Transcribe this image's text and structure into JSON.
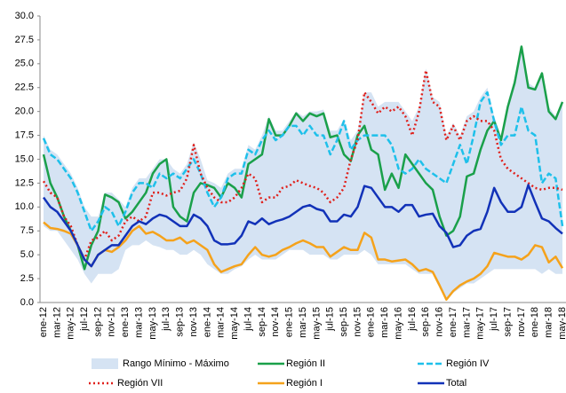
{
  "chart_data": {
    "type": "line",
    "categories": [
      "ene-12",
      null,
      "mar-12",
      null,
      "may-12",
      null,
      "jul-12",
      null,
      "sep-12",
      null,
      "nov-12",
      null,
      "ene-13",
      null,
      "mar-13",
      null,
      "may-13",
      null,
      "jul-13",
      null,
      "sep-13",
      null,
      "nov-13",
      null,
      "ene-14",
      null,
      "mar-14",
      null,
      "may-14",
      null,
      "jul-14",
      null,
      "sep-14",
      null,
      "nov-14",
      null,
      "ene-15",
      null,
      "mar-15",
      null,
      "may-15",
      null,
      "jul-15",
      null,
      "sep-15",
      null,
      "nov-15",
      null,
      "ene-16",
      null,
      "mar-16",
      null,
      "may-16",
      null,
      "jul-16",
      null,
      "sep-16",
      null,
      "nov-16",
      null,
      "ene-17",
      null,
      "mar-17",
      null,
      "may-17",
      null,
      "jul-17",
      null,
      "sep-17",
      null,
      "nov-17",
      null,
      "ene-18",
      null,
      "mar-18",
      null,
      "may-18"
    ],
    "ylim": [
      0,
      30
    ],
    "yticks": [
      {
        "value": 0,
        "label": "0.0"
      },
      2.5,
      {
        "value": 5,
        "label": "5.0"
      },
      7.5,
      {
        "value": 10,
        "label": "10.0"
      },
      12.5,
      {
        "value": 15,
        "label": "15.0"
      },
      17.5,
      {
        "value": 20,
        "label": "20.0"
      },
      22.5,
      {
        "value": 25,
        "label": "25.0"
      },
      27.5,
      {
        "value": 30,
        "label": "30.0"
      }
    ],
    "band": {
      "name": "Rango Mínimo - Máximo",
      "color": "#d5e3f3",
      "high": [
        17.5,
        16,
        15.5,
        14.5,
        13.5,
        12,
        10,
        9,
        9,
        11.5,
        11.5,
        10.8,
        10,
        12,
        13,
        13,
        14,
        15,
        15,
        14,
        13.5,
        14.5,
        16.8,
        15,
        12.8,
        12.5,
        12,
        13.5,
        14,
        14,
        16.5,
        16,
        17.5,
        19.5,
        18,
        18,
        19,
        20,
        19.5,
        20,
        20,
        20.2,
        18,
        18,
        19.2,
        17,
        18,
        22,
        22,
        20.5,
        21,
        21,
        21,
        20,
        19,
        20.5,
        24.5,
        21.5,
        21,
        17.5,
        18.8,
        17.5,
        19.5,
        20,
        21.5,
        22.5,
        19.5,
        17.5,
        21,
        23.5,
        27,
        23,
        22.5,
        24.2,
        20.5,
        19.5,
        21.2
      ],
      "low": [
        8,
        7.5,
        7.5,
        6.5,
        5.5,
        4.5,
        3,
        2,
        3,
        3,
        3,
        3.5,
        5.5,
        6,
        6,
        6.5,
        6,
        5.8,
        5.5,
        5.5,
        5,
        5,
        5.5,
        5,
        4,
        3.5,
        3,
        3,
        3.5,
        3.8,
        4.5,
        5,
        4.5,
        4.5,
        4.5,
        5,
        5.5,
        5.5,
        5.5,
        5,
        5,
        5,
        4.5,
        4.5,
        5,
        5,
        5,
        5.5,
        5,
        4,
        4,
        4,
        4,
        4,
        3.5,
        3,
        3,
        3,
        1.5,
        0.2,
        1,
        1.5,
        2,
        2,
        2.5,
        3,
        3.5,
        3.5,
        3.5,
        3.5,
        3.5,
        3.5,
        3.5,
        3,
        3.5,
        3,
        3
      ]
    },
    "series": [
      {
        "name": "Región II",
        "color": "#1aa04a",
        "dash": "solid",
        "values": [
          15.5,
          12.5,
          11,
          9,
          7.5,
          6,
          3.5,
          6,
          7.5,
          11.3,
          11,
          10.5,
          8.8,
          9.5,
          10.5,
          11.5,
          13.5,
          14.5,
          15,
          10,
          9,
          8.5,
          11.5,
          12.5,
          12.3,
          12,
          11,
          12.5,
          12,
          11,
          14.5,
          15,
          15.5,
          19.2,
          17.5,
          17.5,
          18.5,
          19.8,
          19,
          19.8,
          19.5,
          19.8,
          17.3,
          17.5,
          15.5,
          14.8,
          17.5,
          18.5,
          16,
          15.5,
          11.8,
          13.5,
          12,
          15.5,
          14.5,
          13.5,
          12.5,
          11.8,
          9,
          7,
          7.5,
          9,
          13.2,
          13.5,
          16,
          18,
          19,
          17,
          20.5,
          23,
          26.8,
          22.5,
          22.3,
          24,
          20,
          19.2,
          21
        ]
      },
      {
        "name": "Región IV",
        "color": "#1ec0ea",
        "dash": "dashed",
        "values": [
          17.2,
          15.5,
          15,
          14,
          13,
          11.5,
          9.5,
          7.5,
          8.5,
          10,
          9.5,
          8,
          9.5,
          11.5,
          12.5,
          12.5,
          12,
          13.5,
          13,
          13.5,
          13,
          14,
          15,
          13.5,
          11.5,
          10,
          11,
          13,
          13.5,
          13.5,
          16,
          15.5,
          17,
          18,
          17,
          17.5,
          18.5,
          18.5,
          17.5,
          18.5,
          17.5,
          17.5,
          15.5,
          17,
          19,
          16,
          17,
          17.5,
          17.5,
          17.5,
          17.5,
          16.5,
          14,
          13.5,
          14,
          15,
          14,
          13.5,
          13,
          12.5,
          14.5,
          16.5,
          14.5,
          17.5,
          21,
          22,
          19,
          16.5,
          17.5,
          17.5,
          20.5,
          18,
          17.5,
          12.5,
          13.5,
          13,
          8
        ]
      },
      {
        "name": "Región VII",
        "color": "#e0201b",
        "dash": "dotted",
        "values": [
          12.7,
          11.5,
          11,
          9,
          8,
          6,
          4.5,
          6.5,
          6.8,
          7.5,
          6.5,
          7,
          8.5,
          9,
          8.5,
          9,
          11.5,
          11.5,
          11.2,
          11.5,
          11.7,
          13,
          16.5,
          13.5,
          12,
          11,
          10.5,
          10.5,
          11,
          12,
          13.5,
          13,
          10.5,
          11,
          11,
          12,
          12.2,
          12.8,
          12.5,
          12.2,
          12,
          11.5,
          10.5,
          11,
          12,
          15,
          17,
          22,
          21,
          19.8,
          20.5,
          20,
          20.5,
          19.5,
          17.5,
          20,
          24.3,
          21,
          20.5,
          17,
          18.5,
          17,
          19,
          19.5,
          19,
          19,
          18,
          15,
          14,
          13.5,
          13,
          12.5,
          12,
          11.8,
          12,
          12,
          11.8
        ]
      },
      {
        "name": "Región I",
        "color": "#f5a21b",
        "dash": "solid",
        "values": [
          8.4,
          7.8,
          7.7,
          7.5,
          7.2,
          6,
          4.5,
          3.8,
          5,
          5.5,
          5.3,
          5.8,
          6.5,
          7.5,
          8,
          7.2,
          7.4,
          7,
          6.5,
          6.5,
          6.8,
          6.2,
          6.5,
          6,
          5.5,
          4,
          3.2,
          3.5,
          3.8,
          4,
          5,
          5.8,
          5,
          4.8,
          5,
          5.5,
          5.8,
          6.2,
          6.5,
          6.2,
          5.8,
          5.8,
          4.8,
          5.3,
          5.8,
          5.5,
          5.5,
          7.3,
          6.8,
          4.5,
          4.5,
          4.3,
          4.4,
          4.5,
          4,
          3.3,
          3.5,
          3.2,
          1.8,
          0.3,
          1.2,
          1.8,
          2.2,
          2.5,
          3,
          3.8,
          5.2,
          5,
          4.8,
          4.8,
          4.5,
          5,
          6,
          5.8,
          4.2,
          4.8,
          3.6
        ]
      },
      {
        "name": "Total",
        "color": "#1232b8",
        "dash": "solid",
        "values": [
          11,
          10,
          9.5,
          8.5,
          7.5,
          6,
          4.5,
          3.8,
          5,
          5.5,
          6,
          6,
          7,
          8,
          8.5,
          8.2,
          8.8,
          9.2,
          9,
          8.5,
          8,
          8,
          9.2,
          8.8,
          8,
          6.5,
          6.1,
          6.1,
          6.2,
          7,
          8.5,
          8.2,
          8.8,
          8.2,
          8.5,
          8.7,
          9,
          9.5,
          10,
          10.2,
          9.8,
          9.6,
          8.5,
          8.5,
          9.2,
          9,
          10,
          12.2,
          12,
          11,
          10,
          10,
          9.5,
          10.2,
          10.2,
          9,
          9.2,
          9.3,
          8,
          7.3,
          5.8,
          6,
          7,
          7.5,
          7.7,
          9.5,
          12,
          10.5,
          9.5,
          9.5,
          10,
          12.3,
          10.5,
          8.8,
          8.5,
          7.8,
          7.2
        ]
      }
    ]
  }
}
